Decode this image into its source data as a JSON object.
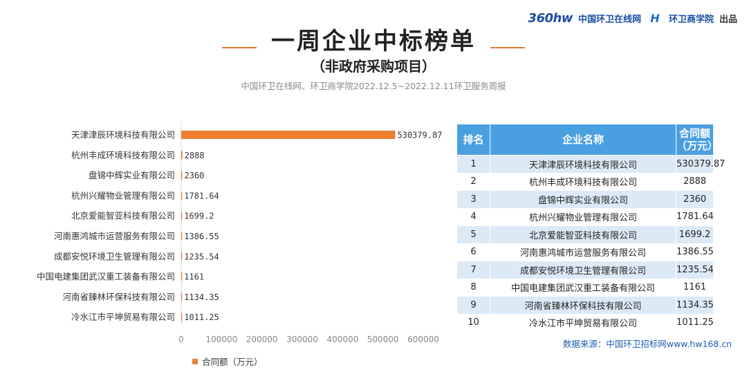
{
  "header": {
    "logo_360": "360hw",
    "site_name": "中国环卫在线网",
    "academy": "环卫商学院",
    "produced": "出品"
  },
  "title": "一周企业中标榜单",
  "subtitle": "（非政府采购项目）",
  "source_line": "中国环卫在线网、环卫商学院2022.12.5~2022.12.11环卫服务周报",
  "legend_label": "合同额（万元）",
  "colors": {
    "bar": "#ed7d31",
    "table_header": "#4a9fe0",
    "table_stripe": "#dceaf7"
  },
  "chart_data": {
    "type": "bar",
    "orientation": "horizontal",
    "categories": [
      "天津津辰环境科技有限公司",
      "杭州丰成环境科技有限公司",
      "盘锦中辉实业有限公司",
      "杭州兴耀物业管理有限公司",
      "北京爱能智亚科技有限公司",
      "河南惠鸿城市运营服务有限公司",
      "成都安悦环境卫生管理有限公司",
      "中国电建集团武汉重工装备有限公司",
      "河南省臻林环保科技有限公司",
      "冷水江市平坤贸易有限公司"
    ],
    "values": [
      530379.87,
      2888,
      2360,
      1781.64,
      1699.2,
      1386.55,
      1235.54,
      1161,
      1134.35,
      1011.25
    ],
    "value_labels": [
      "530379.87",
      "2888",
      "2360",
      "1781.64",
      "1699.2",
      "1386.55",
      "1235.54",
      "1161",
      "1134.35",
      "1011.25"
    ],
    "xlim": [
      0,
      600000
    ],
    "xticks": [
      0,
      100000,
      200000,
      300000,
      400000,
      500000,
      600000
    ],
    "xtick_labels": [
      "0",
      "100000",
      "200000",
      "300000",
      "400000",
      "500000",
      "600000"
    ],
    "legend": "bottom",
    "grid": false
  },
  "table": {
    "headers": [
      "排名",
      "企业名称",
      "合同额\n（万元）"
    ],
    "rows": [
      [
        "1",
        "天津津辰环境科技有限公司",
        "530379.87"
      ],
      [
        "2",
        "杭州丰成环境科技有限公司",
        "2888"
      ],
      [
        "3",
        "盘锦中辉实业有限公司",
        "2360"
      ],
      [
        "4",
        "杭州兴耀物业管理有限公司",
        "1781.64"
      ],
      [
        "5",
        "北京爱能智亚科技有限公司",
        "1699.2"
      ],
      [
        "6",
        "河南惠鸿城市运营服务有限公司",
        "1386.55"
      ],
      [
        "7",
        "成都安悦环境卫生管理有限公司",
        "1235.54"
      ],
      [
        "8",
        "中国电建集团武汉重工装备有限公司",
        "1161"
      ],
      [
        "9",
        "河南省臻林环保科技有限公司",
        "1134.35"
      ],
      [
        "10",
        "冷水江市平坤贸易有限公司",
        "1011.25"
      ]
    ]
  },
  "footer_source": "数据来源：中国环卫招标网www.hw168.cn"
}
